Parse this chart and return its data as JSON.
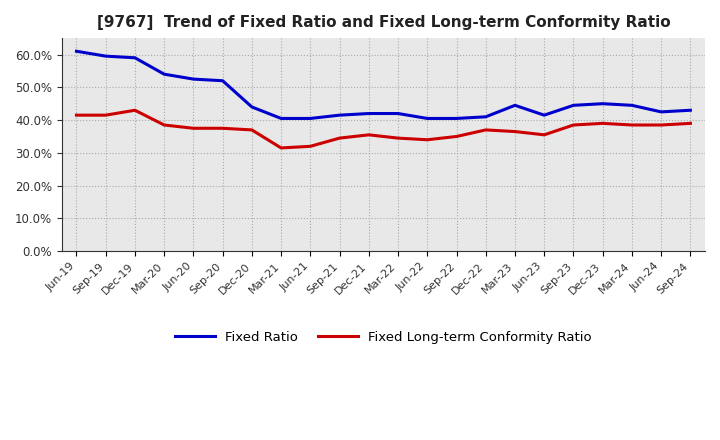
{
  "title": "[9767]  Trend of Fixed Ratio and Fixed Long-term Conformity Ratio",
  "x_labels": [
    "Jun-19",
    "Sep-19",
    "Dec-19",
    "Mar-20",
    "Jun-20",
    "Sep-20",
    "Dec-20",
    "Mar-21",
    "Jun-21",
    "Sep-21",
    "Dec-21",
    "Mar-22",
    "Jun-22",
    "Sep-22",
    "Dec-22",
    "Mar-23",
    "Jun-23",
    "Sep-23",
    "Dec-23",
    "Mar-24",
    "Jun-24",
    "Sep-24"
  ],
  "fixed_ratio": [
    61.0,
    59.5,
    59.0,
    54.0,
    52.5,
    52.0,
    44.0,
    40.5,
    40.5,
    41.5,
    42.0,
    42.0,
    40.5,
    40.5,
    41.0,
    44.5,
    41.5,
    44.5,
    45.0,
    44.5,
    42.5,
    43.0
  ],
  "fixed_lt_ratio": [
    41.5,
    41.5,
    43.0,
    38.5,
    37.5,
    37.5,
    37.0,
    31.5,
    32.0,
    34.5,
    35.5,
    34.5,
    34.0,
    35.0,
    37.0,
    36.5,
    35.5,
    38.5,
    39.0,
    38.5,
    38.5,
    39.0
  ],
  "fixed_ratio_color": "#0000CC",
  "fixed_lt_ratio_color": "#CC0000",
  "ylim": [
    0,
    65
  ],
  "yticks": [
    0,
    10,
    20,
    30,
    40,
    50,
    60
  ],
  "plot_bg_color": "#E8E8E8",
  "fig_bg_color": "#FFFFFF",
  "grid_color": "#AAAAAA",
  "legend_fixed": "Fixed Ratio",
  "legend_lt": "Fixed Long-term Conformity Ratio"
}
